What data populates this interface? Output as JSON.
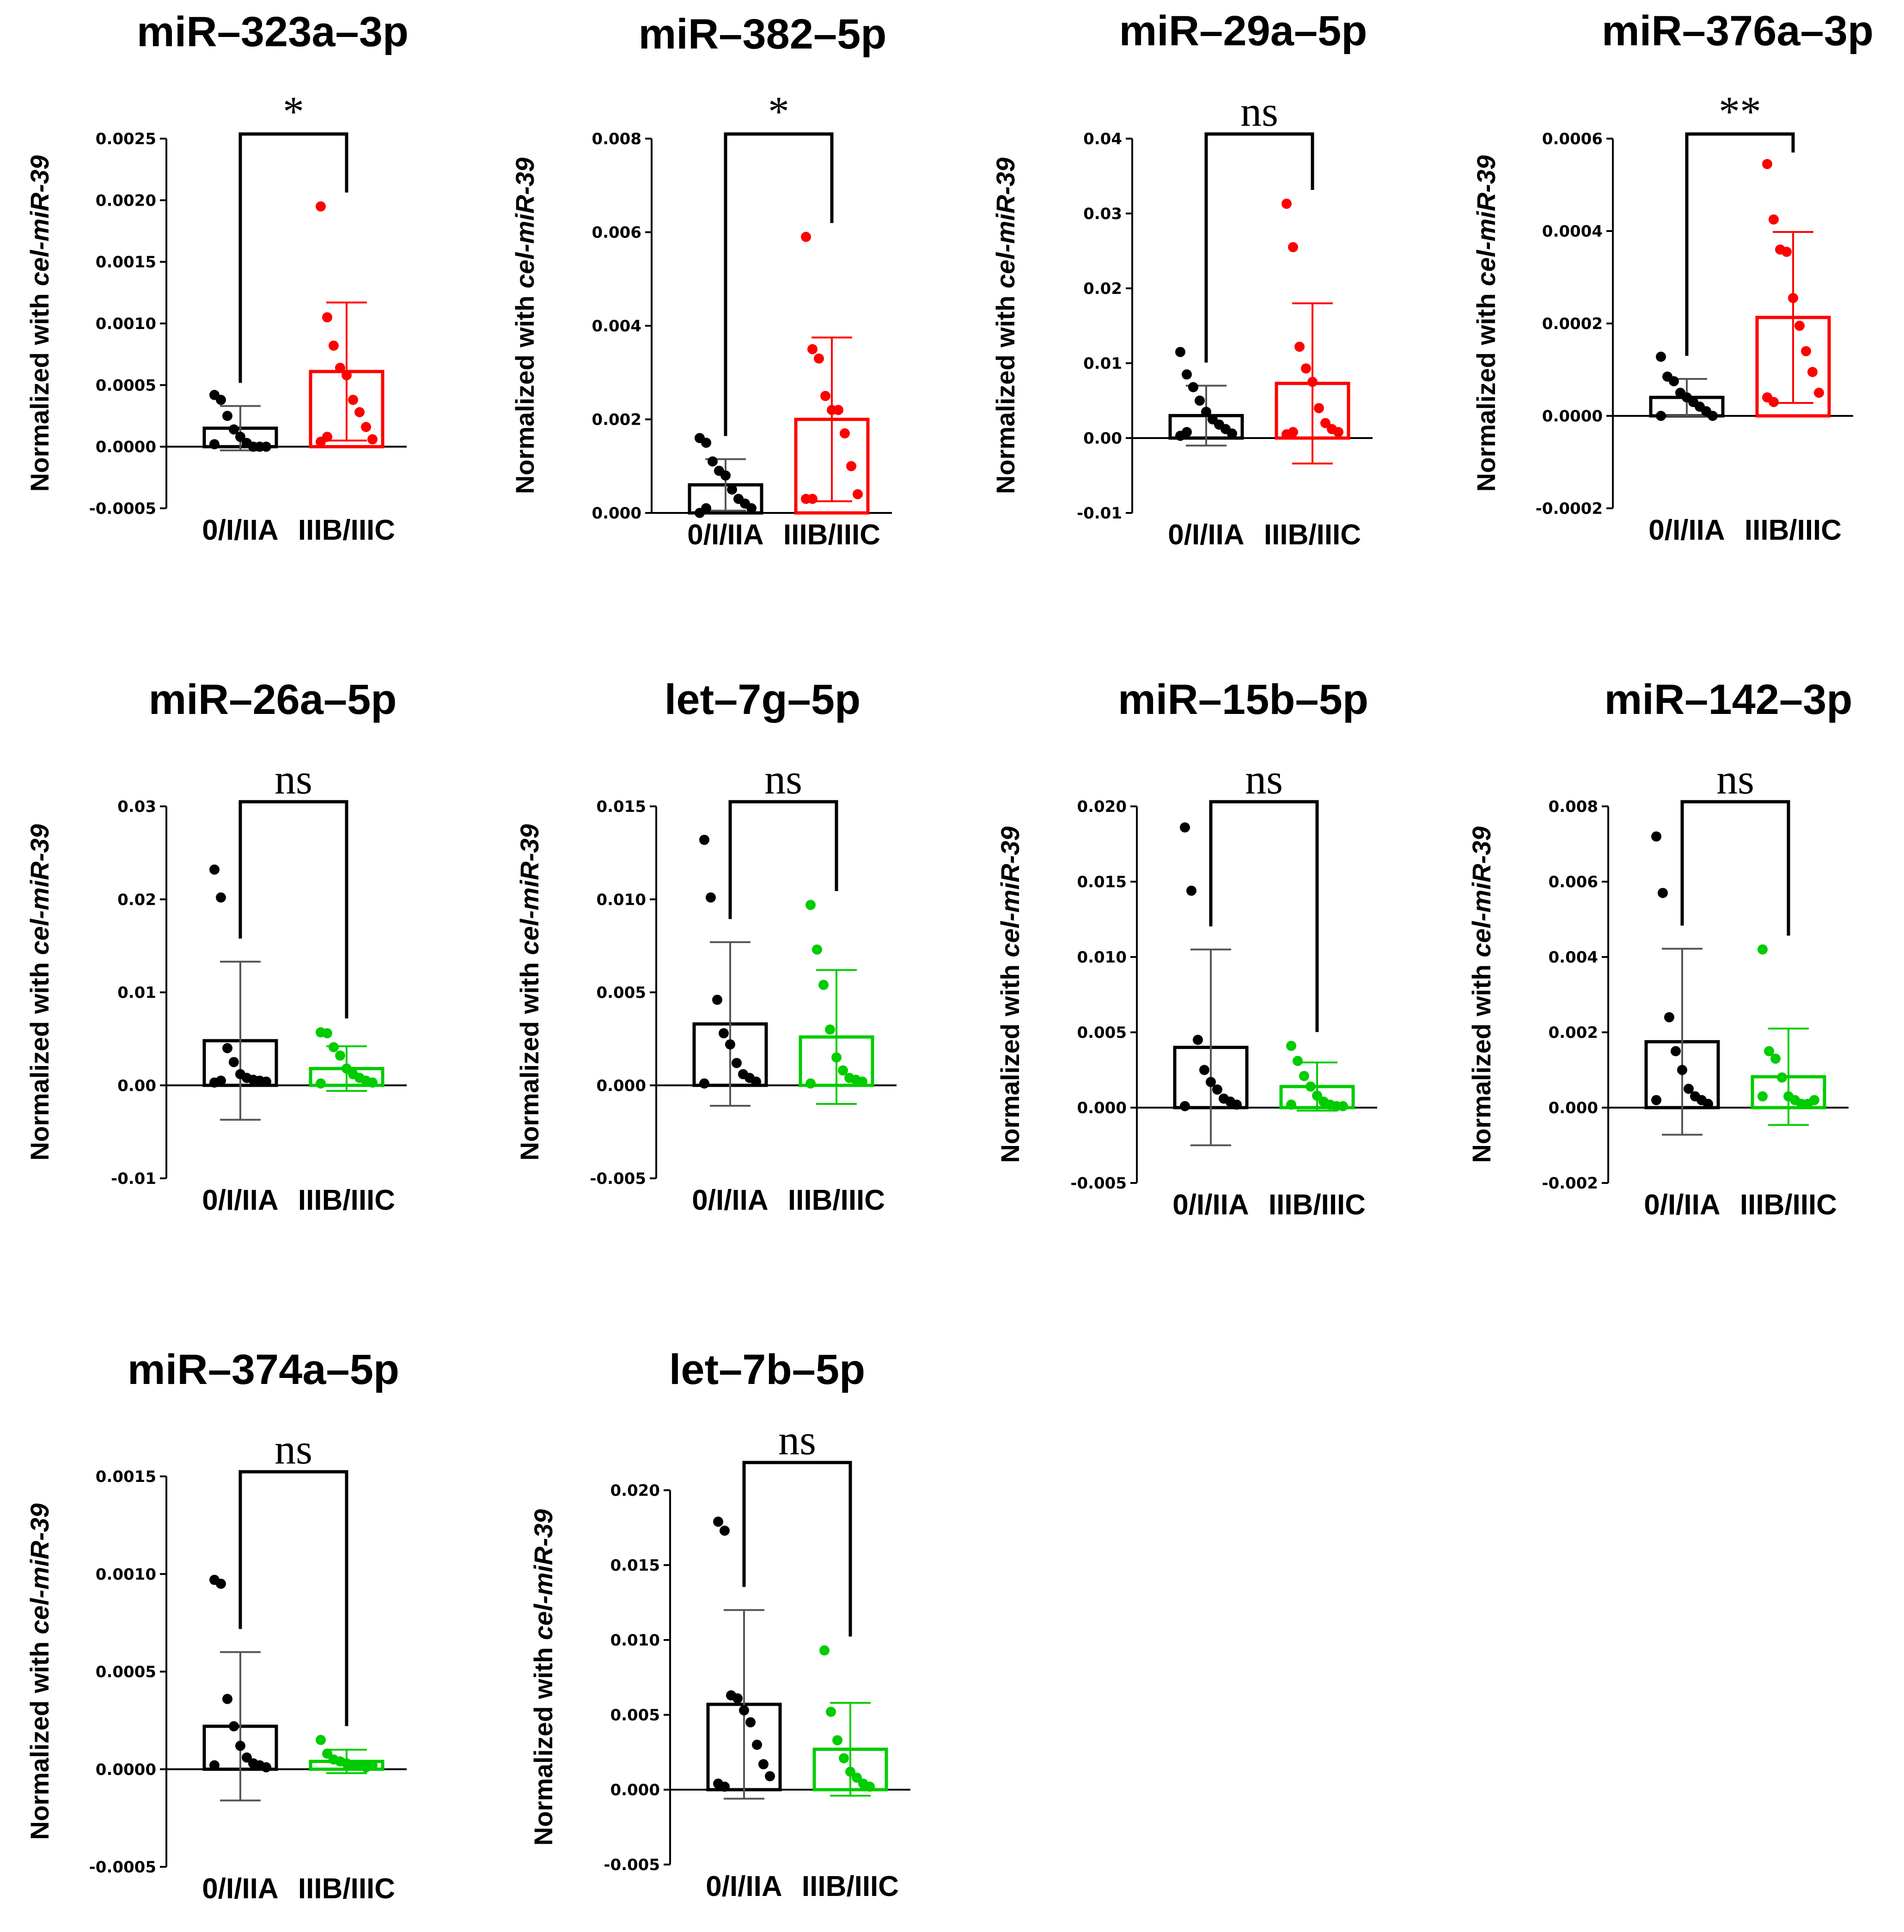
{
  "figure": {
    "colors": {
      "group1": "#000000",
      "group2_red": "#ff0000",
      "group2_green": "#00cc00",
      "axis": "#000000",
      "error_grey": "#555555"
    }
  },
  "chart_data": [
    {
      "type": "bar",
      "title": "miR–323a–3p",
      "ylabel_prefix": "Normalized with ",
      "ylabel_italic": "cel-miR-39",
      "categories": [
        "0/I/IIA",
        "IIIB/IIIC"
      ],
      "yticks": [
        "-0.0005",
        "0.0000",
        "0.0005",
        "0.0010",
        "0.0015",
        "0.0020",
        "0.0025"
      ],
      "ylim": [
        -0.0005,
        0.0025
      ],
      "group2_color": "red",
      "means": [
        0.00015,
        0.00061
      ],
      "sd": [
        0.00018,
        0.00056
      ],
      "points": [
        [
          0.00042,
          0.00038,
          0.00025,
          0.00014,
          8e-05,
          3e-05,
          0.0,
          0.0,
          0.0,
          2e-05
        ],
        [
          0.00195,
          0.00105,
          0.00082,
          0.00064,
          0.00058,
          0.00038,
          0.00028,
          0.00016,
          6e-05,
          4e-05,
          8e-05
        ]
      ],
      "significance": "*"
    },
    {
      "type": "bar",
      "title": "miR–382–5p",
      "ylabel_prefix": "Normalized with ",
      "ylabel_italic": "cel-miR-39",
      "categories": [
        "0/I/IIA",
        "IIIB/IIIC"
      ],
      "yticks": [
        "0.000",
        "0.002",
        "0.004",
        "0.006",
        "0.008"
      ],
      "ylim": [
        0.0,
        0.008
      ],
      "group2_color": "red",
      "means": [
        0.0006,
        0.002
      ],
      "sd": [
        0.00055,
        0.00175
      ],
      "points": [
        [
          0.0016,
          0.0015,
          0.0011,
          0.0009,
          0.0008,
          0.0005,
          0.0003,
          0.0002,
          0.0001,
          0.0,
          0.0001
        ],
        [
          0.0059,
          0.0035,
          0.0033,
          0.0025,
          0.0022,
          0.0022,
          0.0017,
          0.001,
          0.0004,
          0.0003,
          0.0003
        ]
      ],
      "significance": "*"
    },
    {
      "type": "bar",
      "title": "miR–29a–5p",
      "ylabel_prefix": "Normalized with ",
      "ylabel_italic": "cel-miR-39",
      "categories": [
        "0/I/IIA",
        "IIIB/IIIC"
      ],
      "yticks": [
        "-0.01",
        "0.00",
        "0.01",
        "0.02",
        "0.03",
        "0.04"
      ],
      "ylim": [
        -0.01,
        0.04
      ],
      "group2_color": "red",
      "means": [
        0.003,
        0.0073
      ],
      "sd": [
        0.004,
        0.0107
      ],
      "points": [
        [
          0.0115,
          0.0085,
          0.0068,
          0.005,
          0.0035,
          0.0025,
          0.0018,
          0.0012,
          0.0006,
          0.0003,
          0.0008
        ],
        [
          0.0313,
          0.0255,
          0.0122,
          0.0093,
          0.0075,
          0.004,
          0.002,
          0.0012,
          0.0008,
          0.0005,
          0.0008
        ]
      ],
      "significance": "ns"
    },
    {
      "type": "bar",
      "title": "miR–376a–3p",
      "ylabel_prefix": "Normalized with ",
      "ylabel_italic": "cel-miR-39",
      "categories": [
        "0/I/IIA",
        "IIIB/IIIC"
      ],
      "yticks": [
        "-0.0002",
        "0.0000",
        "0.0002",
        "0.0004",
        "0.0006"
      ],
      "ylim": [
        -0.0002,
        0.0006
      ],
      "group2_color": "red",
      "means": [
        4e-05,
        0.000213
      ],
      "sd": [
        4e-05,
        0.000185
      ],
      "points": [
        [
          0.000128,
          8.5e-05,
          7.5e-05,
          5e-05,
          4e-05,
          3e-05,
          2e-05,
          1e-05,
          0.0,
          0.0
        ],
        [
          0.000545,
          0.000425,
          0.00036,
          0.000355,
          0.000255,
          0.000195,
          0.00014,
          9.5e-05,
          5e-05,
          4e-05,
          3e-05
        ]
      ],
      "significance": "**"
    },
    {
      "type": "bar",
      "title": "miR–26a–5p",
      "ylabel_prefix": "Normalized with ",
      "ylabel_italic": "cel-miR-39",
      "categories": [
        "0/I/IIA",
        "IIIB/IIIC"
      ],
      "yticks": [
        "-0.01",
        "0.00",
        "0.01",
        "0.02",
        "0.03"
      ],
      "ylim": [
        -0.01,
        0.03
      ],
      "group2_color": "green",
      "means": [
        0.0048,
        0.0018
      ],
      "sd": [
        0.0085,
        0.0024
      ],
      "points": [
        [
          0.0232,
          0.0202,
          0.004,
          0.0025,
          0.0012,
          0.0008,
          0.0006,
          0.0005,
          0.0004,
          0.0003,
          0.0005
        ],
        [
          0.0057,
          0.0056,
          0.0041,
          0.0032,
          0.0018,
          0.0012,
          0.0008,
          0.0005,
          0.0003,
          0.0002
        ]
      ],
      "significance": "ns"
    },
    {
      "type": "bar",
      "title": "let–7g–5p",
      "ylabel_prefix": "Normalized with ",
      "ylabel_italic": "cel-miR-39",
      "categories": [
        "0/I/IIA",
        "IIIB/IIIC"
      ],
      "yticks": [
        "-0.005",
        "0.000",
        "0.005",
        "0.010",
        "0.015"
      ],
      "ylim": [
        -0.005,
        0.015
      ],
      "group2_color": "green",
      "means": [
        0.0033,
        0.0026
      ],
      "sd": [
        0.0044,
        0.0036
      ],
      "points": [
        [
          0.0132,
          0.0101,
          0.0046,
          0.0028,
          0.0022,
          0.0012,
          0.0006,
          0.0004,
          0.0002,
          0.0001
        ],
        [
          0.0097,
          0.0073,
          0.0054,
          0.003,
          0.0015,
          0.0008,
          0.0004,
          0.0003,
          0.0002,
          0.0001
        ]
      ],
      "significance": "ns"
    },
    {
      "type": "bar",
      "title": "miR–15b–5p",
      "ylabel_prefix": "Normalized with ",
      "ylabel_italic": "cel-miR-39",
      "categories": [
        "0/I/IIA",
        "IIIB/IIIC"
      ],
      "yticks": [
        "-0.005",
        "0.000",
        "0.005",
        "0.010",
        "0.015",
        "0.020"
      ],
      "ylim": [
        -0.005,
        0.02
      ],
      "group2_color": "green",
      "means": [
        0.004,
        0.0014
      ],
      "sd": [
        0.0065,
        0.0016
      ],
      "points": [
        [
          0.0186,
          0.0144,
          0.0045,
          0.0025,
          0.0017,
          0.0012,
          0.0006,
          0.0004,
          0.0002,
          0.0001
        ],
        [
          0.0041,
          0.0031,
          0.0021,
          0.0014,
          0.0008,
          0.0004,
          0.0002,
          0.0001,
          0.0001,
          0.0002
        ]
      ],
      "significance": "ns"
    },
    {
      "type": "bar",
      "title": "miR–142–3p",
      "ylabel_prefix": "Normalized with ",
      "ylabel_italic": "cel-miR-39",
      "categories": [
        "0/I/IIA",
        "IIIB/IIIC"
      ],
      "yticks": [
        "-0.002",
        "0.000",
        "0.002",
        "0.004",
        "0.006",
        "0.008"
      ],
      "ylim": [
        -0.002,
        0.008
      ],
      "group2_color": "green",
      "means": [
        0.00175,
        0.00082
      ],
      "sd": [
        0.00247,
        0.00128
      ],
      "points": [
        [
          0.0072,
          0.0057,
          0.0024,
          0.0015,
          0.001,
          0.0005,
          0.0003,
          0.0002,
          0.0001,
          0.0002
        ],
        [
          0.0042,
          0.0015,
          0.0013,
          0.0008,
          0.0003,
          0.0002,
          0.0001,
          0.0001,
          0.0002,
          0.0003
        ]
      ],
      "significance": "ns"
    },
    {
      "type": "bar",
      "title": "miR–374a–5p",
      "ylabel_prefix": "Normalized with ",
      "ylabel_italic": "cel-miR-39",
      "categories": [
        "0/I/IIA",
        "IIIB/IIIC"
      ],
      "yticks": [
        "-0.0005",
        "0.0000",
        "0.0005",
        "0.0010",
        "0.0015"
      ],
      "ylim": [
        -0.0005,
        0.0015
      ],
      "group2_color": "green",
      "means": [
        0.00022,
        4e-05
      ],
      "sd": [
        0.00038,
        6e-05
      ],
      "points": [
        [
          0.00097,
          0.00095,
          0.00036,
          0.00022,
          0.00012,
          6e-05,
          3e-05,
          2e-05,
          1e-05,
          2e-05
        ],
        [
          0.00015,
          8e-05,
          5e-05,
          4e-05,
          3e-05,
          2e-05,
          2e-05,
          1e-05,
          2e-05
        ]
      ],
      "significance": "ns"
    },
    {
      "type": "bar",
      "title": "let–7b–5p",
      "ylabel_prefix": "Normalized with ",
      "ylabel_italic": "cel-miR-39",
      "categories": [
        "0/I/IIA",
        "IIIB/IIIC"
      ],
      "yticks": [
        "-0.005",
        "0.000",
        "0.005",
        "0.010",
        "0.015",
        "0.020"
      ],
      "ylim": [
        -0.005,
        0.02
      ],
      "group2_color": "green",
      "means": [
        0.0057,
        0.0027
      ],
      "sd": [
        0.0063,
        0.0031
      ],
      "points": [
        [
          0.0179,
          0.0173,
          0.0063,
          0.0061,
          0.0053,
          0.0045,
          0.003,
          0.0017,
          0.0009,
          0.0004,
          0.0002
        ],
        [
          0.0093,
          0.0052,
          0.0033,
          0.0021,
          0.0012,
          0.0008,
          0.0004,
          0.0002
        ]
      ],
      "significance": "ns"
    }
  ]
}
